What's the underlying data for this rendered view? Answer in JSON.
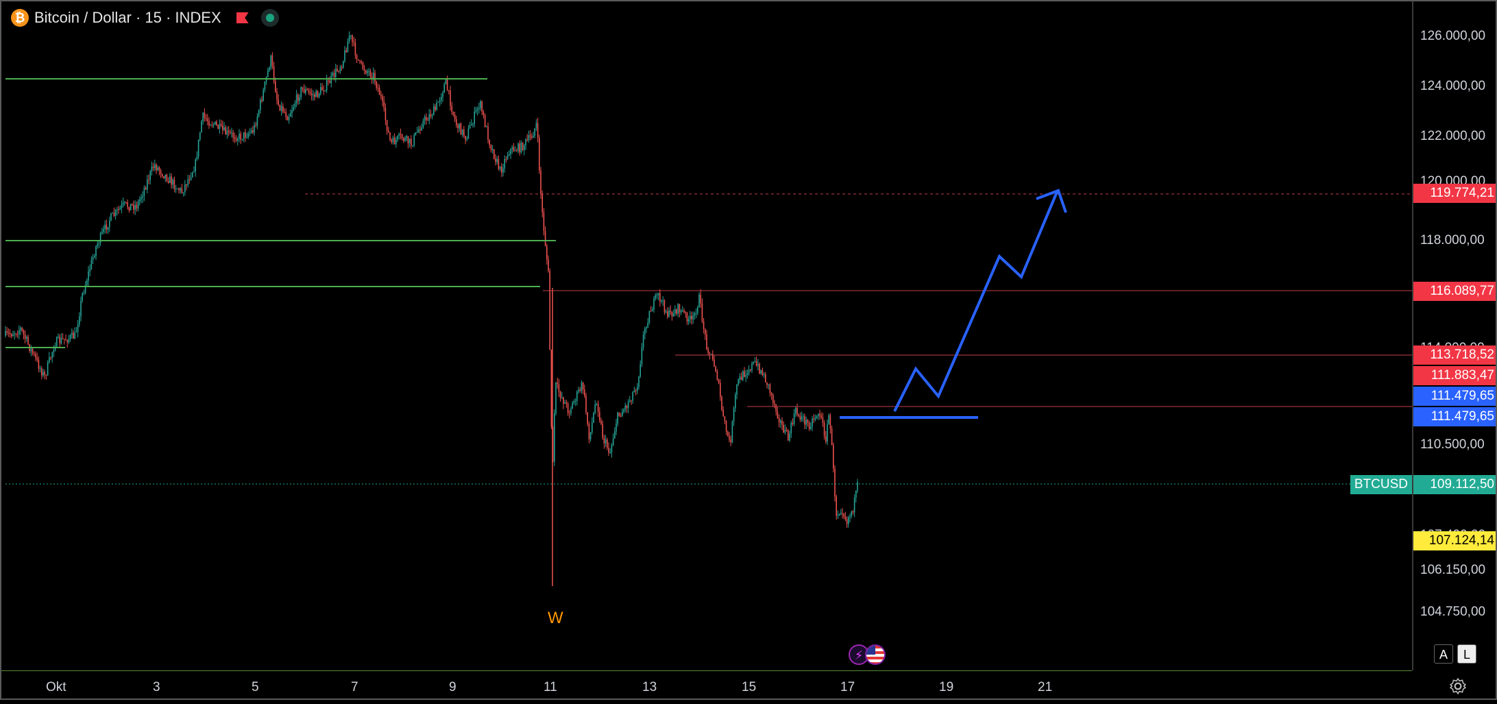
{
  "legend": {
    "symbol_icon": "bitcoin-icon",
    "symbol_glyph": "₿",
    "title": "Bitcoin / Dollar · 15 · INDEX",
    "flag_color": "#f23645",
    "status_color": "#1aa37f"
  },
  "price_axis": {
    "ticks": [
      "126.000,00",
      "124.000,00",
      "122.000,00",
      "118.000,00",
      "110.500,00",
      "106.150,00",
      "104.750,00"
    ],
    "scale_buttons": [
      "A",
      "L"
    ],
    "settings_icon": "gear-icon"
  },
  "time_axis": {
    "ticks": [
      "Okt",
      "3",
      "5",
      "7",
      "9",
      "11",
      "13",
      "15",
      "17",
      "19",
      "21"
    ]
  },
  "price_tags": [
    {
      "label": "119.774,21",
      "color": "#f23645",
      "text_color": "#ffffff"
    },
    {
      "label": "116.089,77",
      "color": "#f23645",
      "text_color": "#ffffff"
    },
    {
      "label": "113.718,52",
      "color": "#f23645",
      "text_color": "#ffffff"
    },
    {
      "label": "111.883,47",
      "color": "#f23645",
      "text_color": "#ffffff"
    },
    {
      "label": "111.479,65",
      "color": "#2962ff",
      "text_color": "#ffffff"
    },
    {
      "label": "111.479,65",
      "color": "#2962ff",
      "text_color": "#ffffff"
    },
    {
      "label": "109.112,50",
      "color": "#22ab94",
      "text_color": "#ffffff"
    },
    {
      "label": "107.124,14",
      "color": "#ffeb3b",
      "text_color": "#000000"
    }
  ],
  "symbol_tag": {
    "label": "BTCUSD",
    "color": "#22ab94"
  },
  "annotations": {
    "wave_label": "W",
    "events": [
      "flash-icon",
      "us-flag-icon"
    ]
  },
  "colors": {
    "up": "#26a69a",
    "down": "#ef5350",
    "support": "#4caf50",
    "projection": "#2962ff"
  }
}
